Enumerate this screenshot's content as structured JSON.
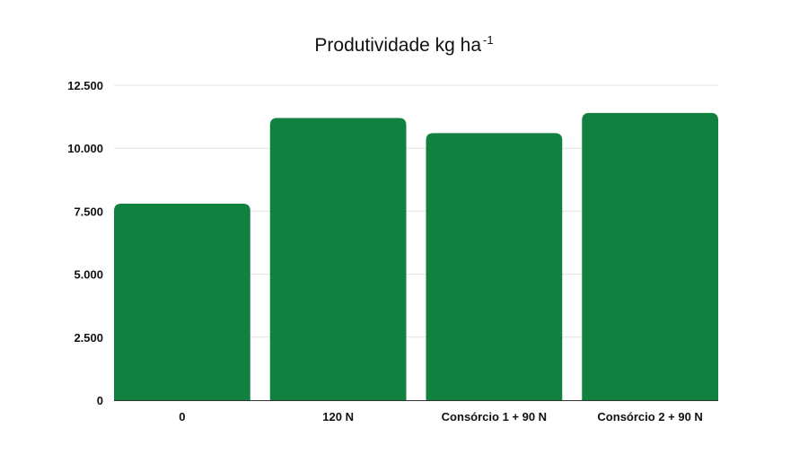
{
  "chart_data": {
    "type": "bar",
    "title": "Produtividade kg ha",
    "title_superscript": "-1",
    "categories": [
      "0",
      "120 N",
      "Consórcio 1 + 90 N",
      "Consórcio 2 + 90 N"
    ],
    "values": [
      7800,
      11200,
      10600,
      11400
    ],
    "yticks": [
      0,
      2500,
      5000,
      7500,
      10000,
      12500
    ],
    "ytick_labels": [
      "0",
      "2.500",
      "5.000",
      "7.500",
      "10.000",
      "12.500"
    ],
    "ylim": [
      0,
      12500
    ],
    "xlabel": "",
    "ylabel": "",
    "grid": true,
    "legend": "none",
    "bar_color": "#11813f"
  }
}
